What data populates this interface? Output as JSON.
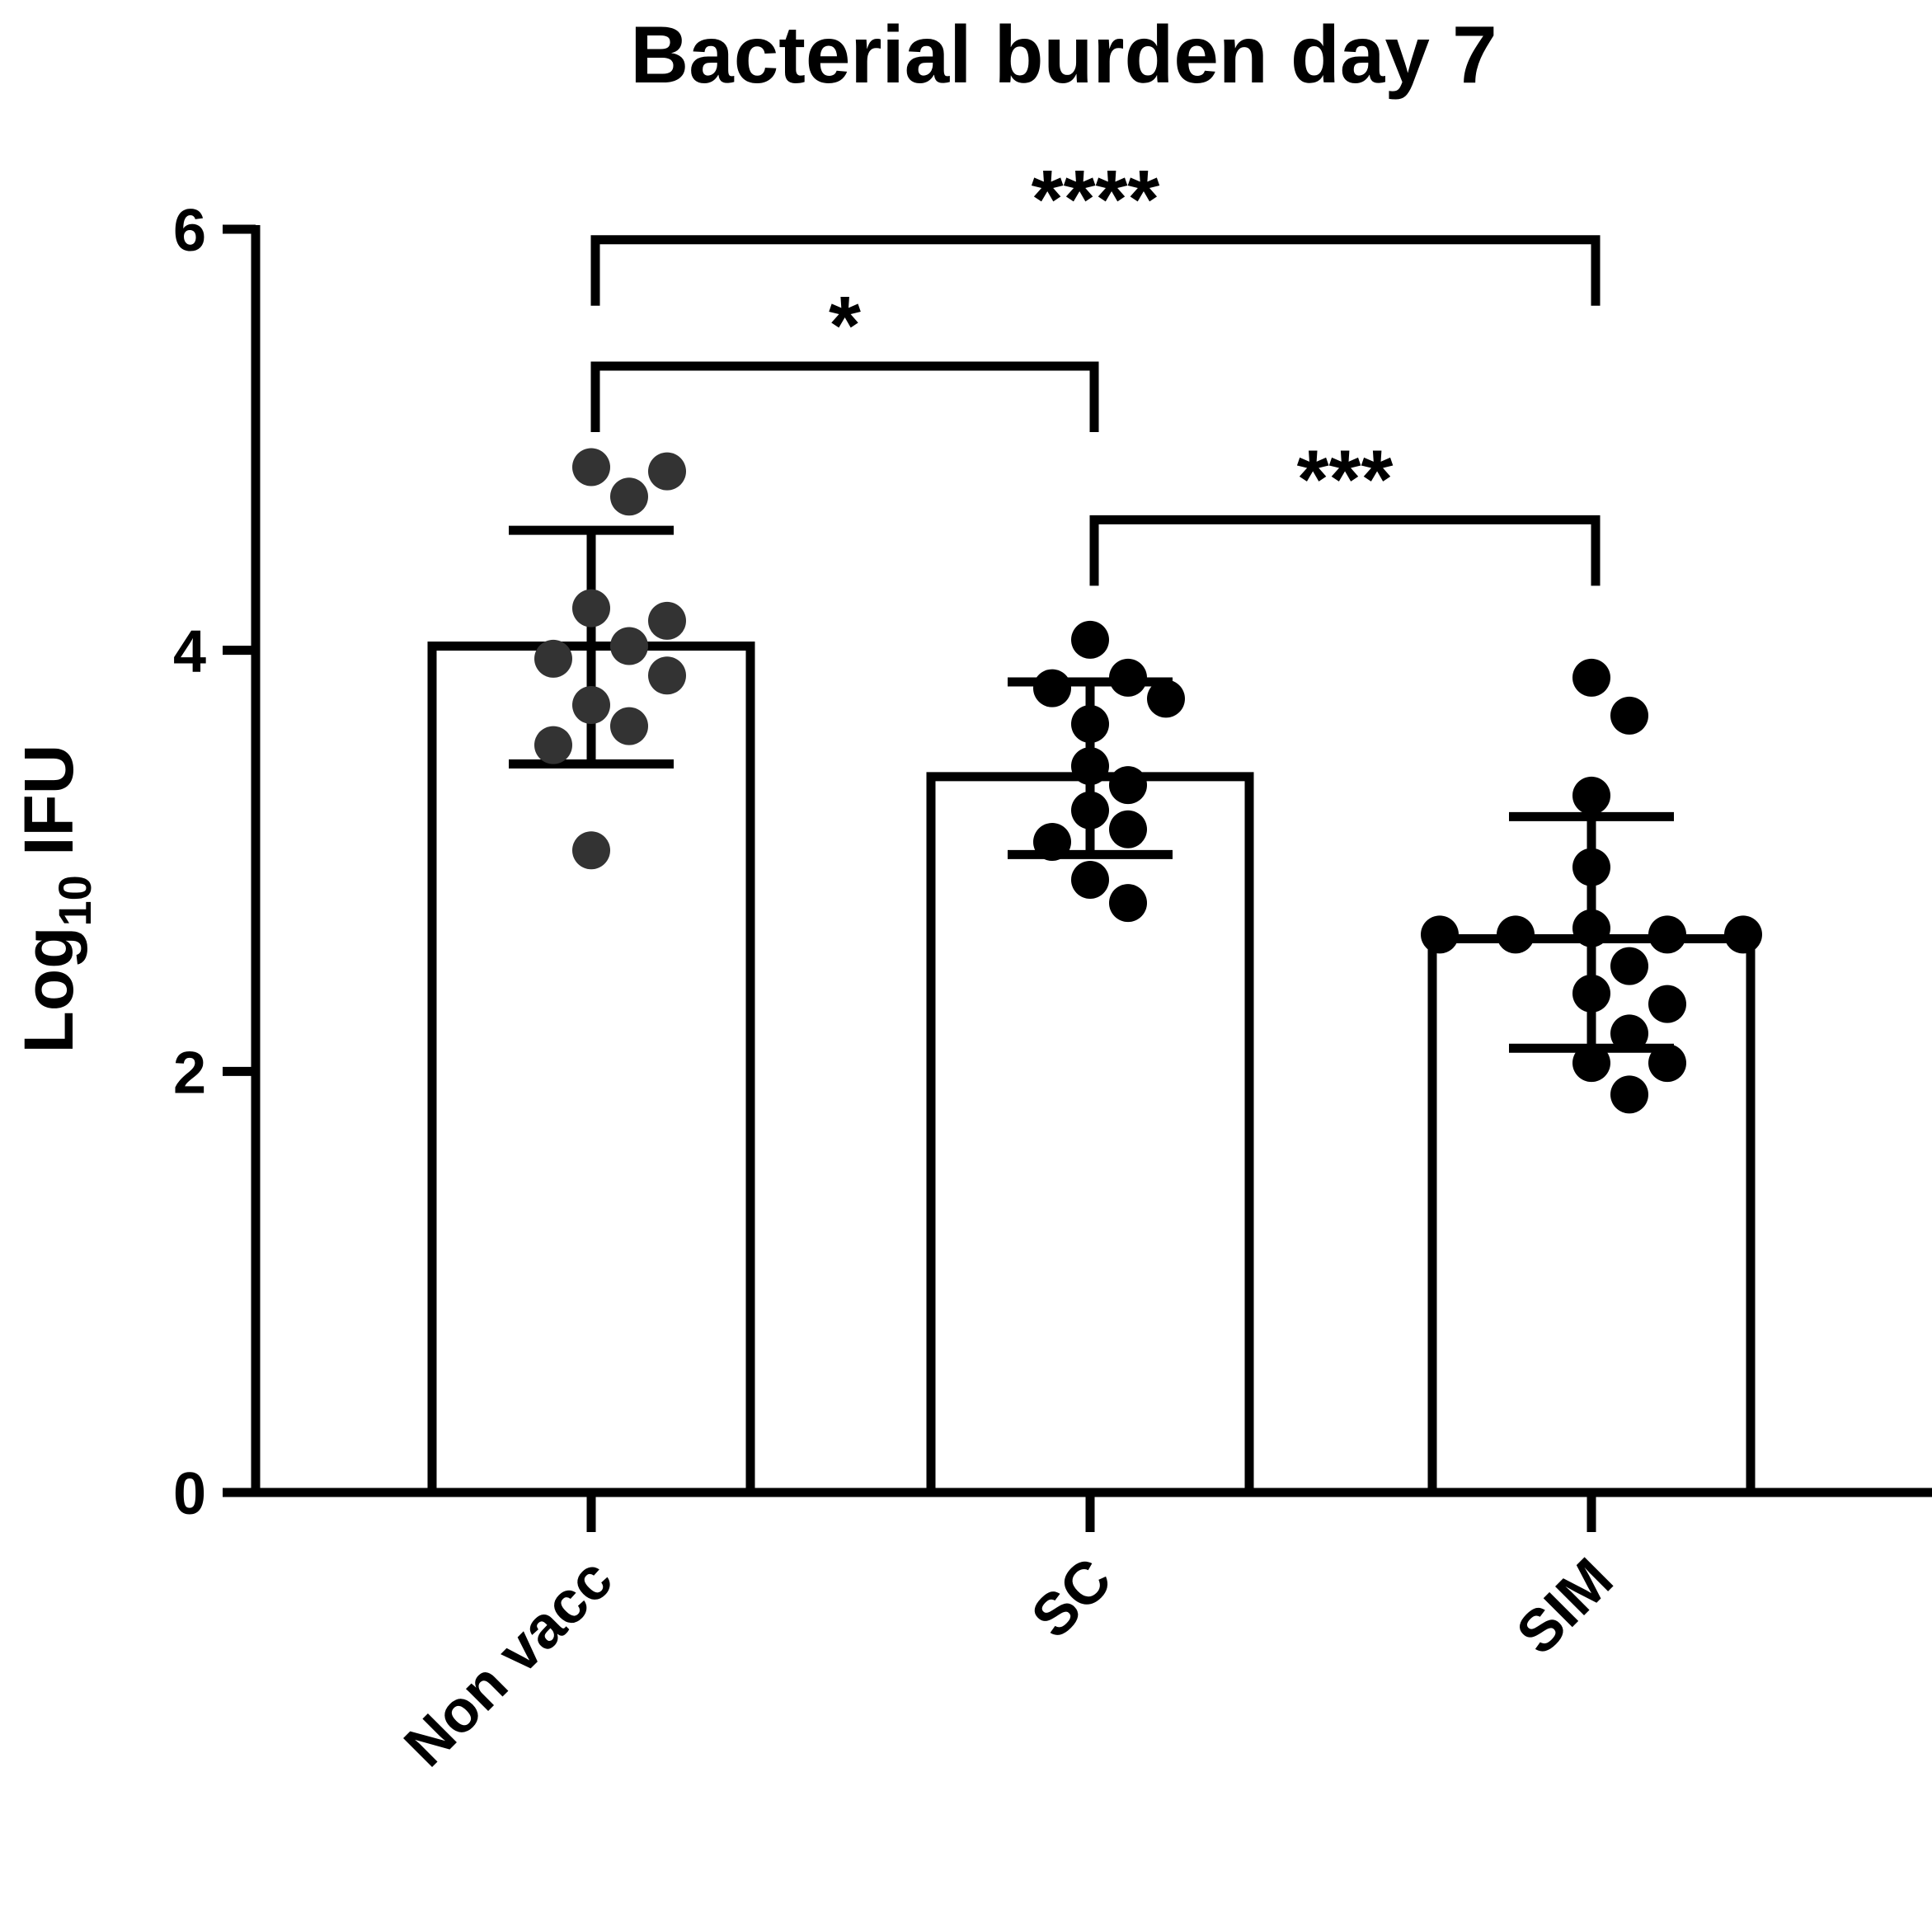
{
  "chart_data": {
    "type": "bar",
    "title": "Bacterial burden day 7",
    "ylabel_main": "Log",
    "ylabel_sub": "10",
    "ylabel_tail": " IFU",
    "ylim": [
      0,
      6
    ],
    "yticks": [
      0,
      2,
      4,
      6
    ],
    "categories": [
      "Non vacc",
      "SC",
      "SIM"
    ],
    "values": [
      4.02,
      3.4,
      2.63
    ],
    "error_upper": [
      4.57,
      3.85,
      3.21
    ],
    "error_lower": [
      3.46,
      3.03,
      2.11
    ],
    "points": [
      [
        4.85,
        4.87,
        4.73,
        4.2,
        4.14,
        4.02,
        3.88,
        3.96,
        3.74,
        3.64,
        3.55,
        3.05
      ],
      [
        4.05,
        3.87,
        3.82,
        3.77,
        3.65,
        3.45,
        3.36,
        3.24,
        3.15,
        3.09,
        2.91,
        2.8
      ],
      [
        3.87,
        3.69,
        3.31,
        2.97,
        2.65,
        2.65,
        2.65,
        2.65,
        2.68,
        2.5,
        2.37,
        2.32,
        2.18,
        2.04,
        2.04,
        1.89
      ]
    ],
    "point_colors": [
      "#333333",
      "#000000",
      "#000000"
    ],
    "comparisons": [
      {
        "from": 0,
        "to": 2,
        "label": "****",
        "level": 5.95
      },
      {
        "from": 0,
        "to": 1,
        "label": "*",
        "level": 5.35
      },
      {
        "from": 1,
        "to": 2,
        "label": "***",
        "level": 4.62
      }
    ],
    "grid": false,
    "legend": "none"
  }
}
